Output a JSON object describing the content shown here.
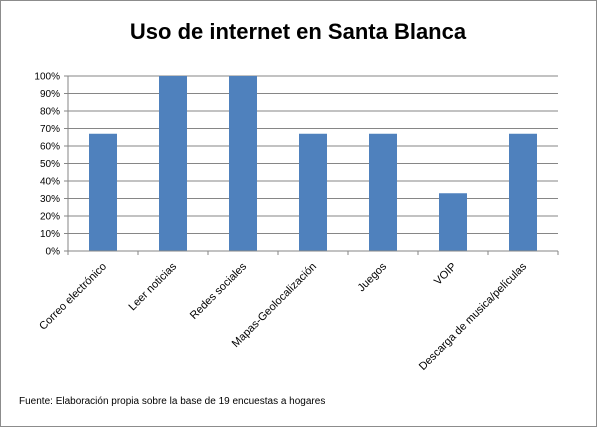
{
  "chart_data": {
    "type": "bar",
    "title": "Uso de internet en Santa Blanca",
    "categories": [
      "Correo electrónico",
      "Leer noticias",
      "Redes sociales",
      "Mapas-Geolocalización",
      "Juegos",
      "VOIP",
      "Descarga de musica/películas"
    ],
    "values": [
      0.67,
      1.0,
      1.0,
      0.67,
      0.67,
      0.33,
      0.67
    ],
    "y_ticks": [
      "0%",
      "10%",
      "20%",
      "30%",
      "40%",
      "50%",
      "60%",
      "70%",
      "80%",
      "90%",
      "100%"
    ],
    "ylim": [
      0,
      1
    ],
    "grid": true,
    "bar_color": "#4f81bd",
    "source_note": "Fuente:  Elaboración propia sobre la base de 19 encuestas a hogares"
  }
}
